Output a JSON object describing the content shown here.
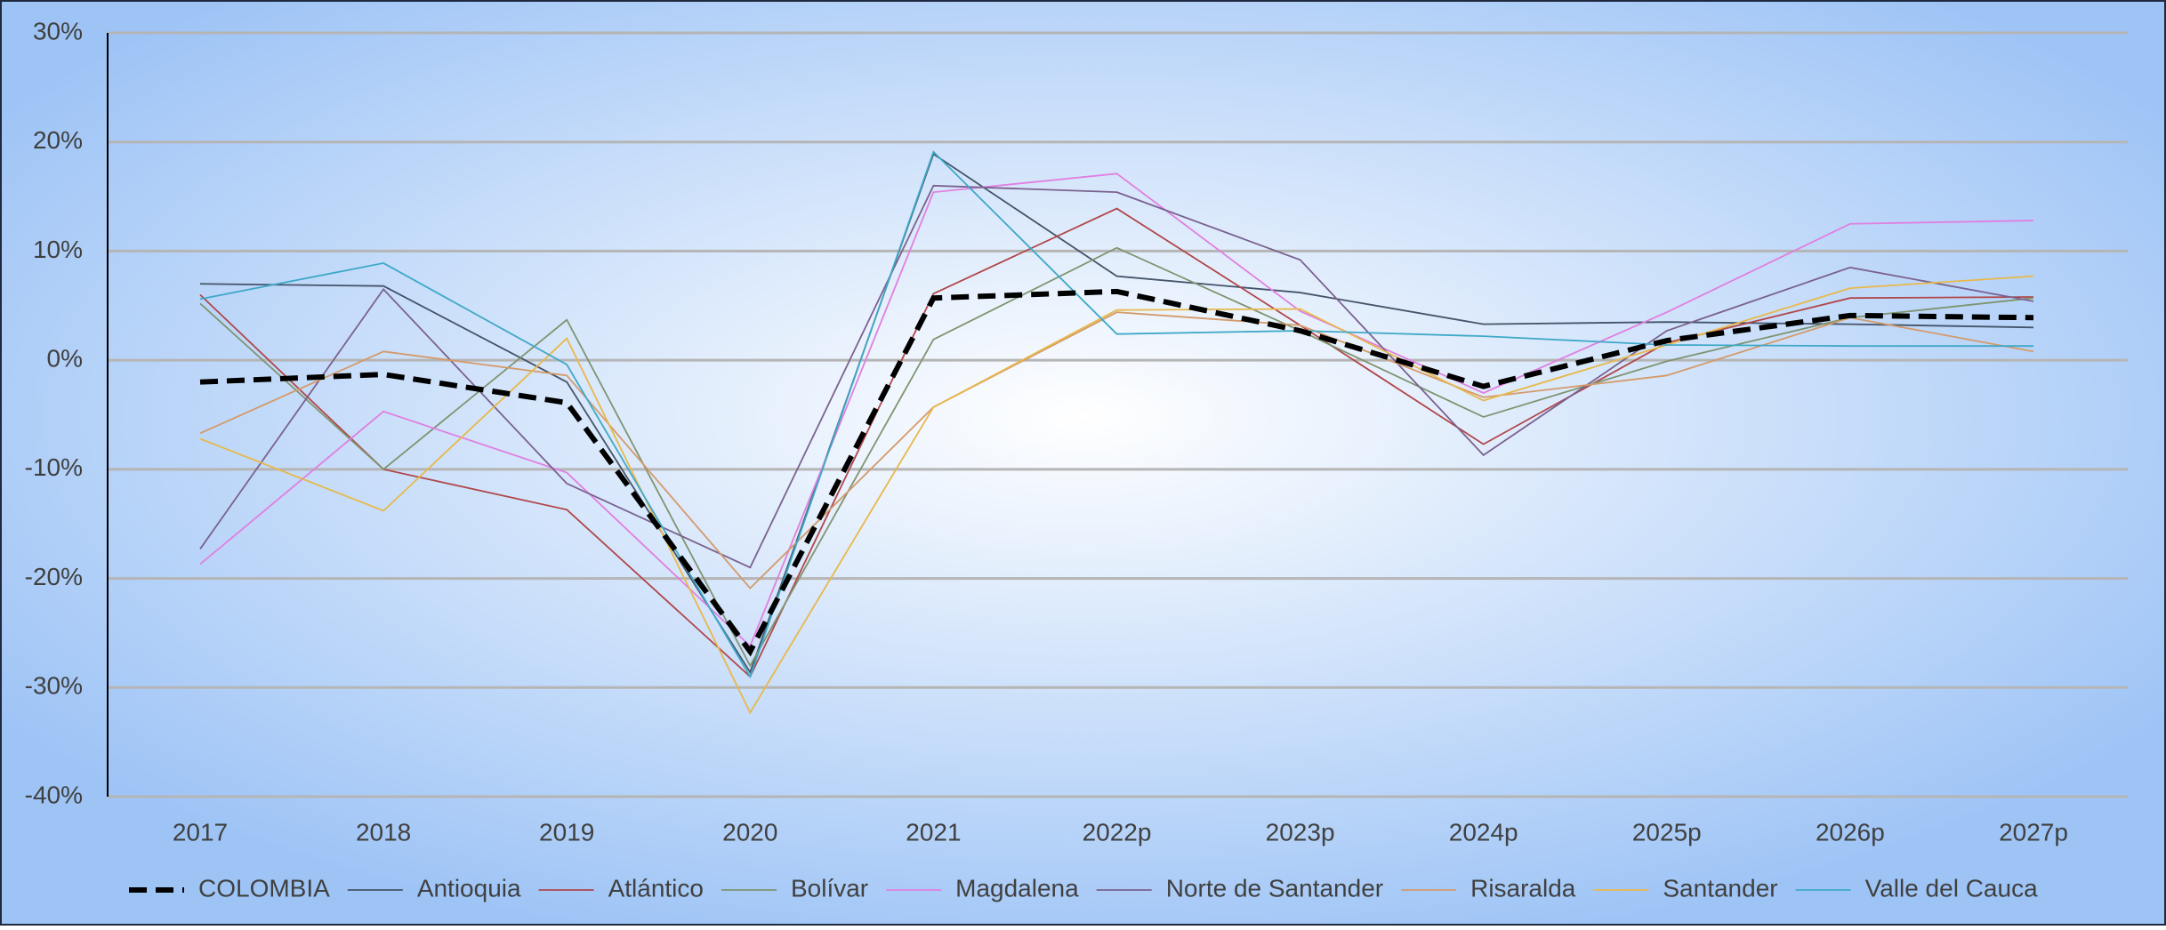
{
  "chart_data": {
    "type": "line",
    "categories": [
      "2017",
      "2018",
      "2019",
      "2020",
      "2021",
      "2022p",
      "2023p",
      "2024p",
      "2025p",
      "2026p",
      "2027p"
    ],
    "series": [
      {
        "name": "COLOMBIA",
        "color": "#000000",
        "dash": true,
        "values": [
          -2.0,
          -1.3,
          -3.9,
          -26.7,
          5.7,
          6.3,
          2.7,
          -2.4,
          1.8,
          4.1,
          3.9
        ]
      },
      {
        "name": "Antioquia",
        "color": "#44546a",
        "values": [
          7.0,
          6.8,
          -2.0,
          -28.6,
          18.9,
          7.7,
          6.2,
          3.3,
          3.5,
          3.3,
          3.0
        ]
      },
      {
        "name": "Atlántico",
        "color": "#b0474a",
        "values": [
          6.0,
          -10.0,
          -13.7,
          -29.0,
          6.1,
          13.9,
          3.2,
          -7.7,
          1.6,
          5.7,
          5.8
        ]
      },
      {
        "name": "Bolívar",
        "color": "#7f9470",
        "values": [
          5.2,
          -10.0,
          3.7,
          -28.0,
          1.9,
          10.3,
          2.7,
          -5.2,
          -0.1,
          3.9,
          5.7
        ]
      },
      {
        "name": "Magdalena",
        "color": "#e07fe0",
        "values": [
          -18.7,
          -4.7,
          -10.3,
          -26.2,
          15.4,
          17.1,
          4.5,
          -3.0,
          4.4,
          12.5,
          12.8
        ]
      },
      {
        "name": "Norte de Santander",
        "color": "#7a628f",
        "values": [
          -17.3,
          6.5,
          -11.3,
          -19.0,
          16.0,
          15.4,
          9.2,
          -8.7,
          2.7,
          8.5,
          5.4
        ]
      },
      {
        "name": "Risaralda",
        "color": "#d49a6a",
        "values": [
          -6.7,
          0.8,
          -1.4,
          -20.9,
          -4.3,
          4.4,
          3.2,
          -3.4,
          -1.4,
          3.9,
          0.8
        ]
      },
      {
        "name": "Santander",
        "color": "#e8b84a",
        "values": [
          -7.2,
          -13.8,
          2.0,
          -32.3,
          -4.3,
          4.6,
          4.7,
          -3.7,
          1.4,
          6.6,
          7.7
        ]
      },
      {
        "name": "Valle del Cauca",
        "color": "#3fa8c8",
        "values": [
          5.6,
          8.9,
          -0.4,
          -29.0,
          19.1,
          2.4,
          2.7,
          2.2,
          1.4,
          1.3,
          1.3
        ]
      }
    ],
    "ylim": [
      -40,
      30
    ],
    "yticks": [
      {
        "value": -40,
        "label": "-40%"
      },
      {
        "value": -30,
        "label": "-30%"
      },
      {
        "value": -20,
        "label": "-20%"
      },
      {
        "value": -10,
        "label": "-10%"
      },
      {
        "value": 0,
        "label": "0%"
      },
      {
        "value": 10,
        "label": "10%"
      },
      {
        "value": 20,
        "label": "20%"
      },
      {
        "value": 30,
        "label": "30%"
      }
    ],
    "grid": true,
    "legend": "bottom"
  }
}
